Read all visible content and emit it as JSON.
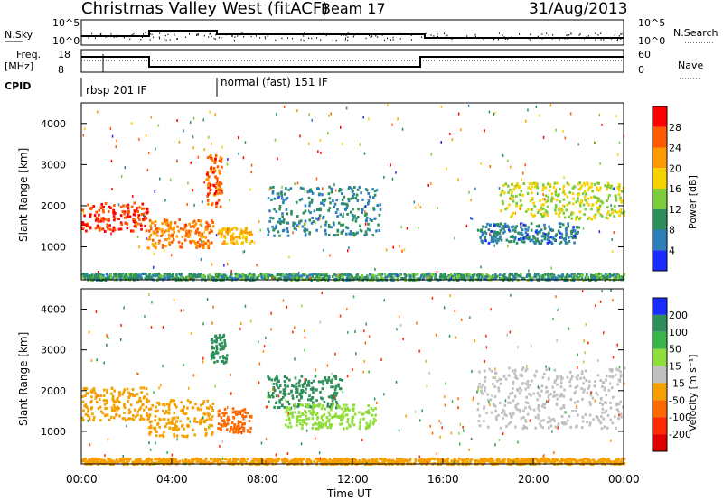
{
  "header": {
    "title": "Christmas Valley West (fitACF)",
    "beam": "Beam 17",
    "date": "31/Aug/2013"
  },
  "panels": {
    "nsky_label": "N.Sky",
    "nsky_ticks": [
      "10^5",
      "10^0"
    ],
    "nsearch_label": "N.Search",
    "nsearch_ticks": [
      "10^5",
      "10^0"
    ],
    "freq_label": "Freq.",
    "freq_unit": "[MHz]",
    "freq_ticks": [
      "18",
      "8"
    ],
    "nave_label": "Nave",
    "nave_ticks": [
      "60",
      "0"
    ],
    "cpid_label": "CPID",
    "cpid_segments": [
      "rbsp 201 IF",
      "normal (fast) 151 IF"
    ]
  },
  "chart_data": [
    {
      "type": "heatmap",
      "name": "power",
      "ylabel": "Slant Range [km]",
      "xlabel": "",
      "colorbar_label": "Power [dB]",
      "colorbar_ticks": [
        "28",
        "24",
        "20",
        "16",
        "12",
        "8",
        "4"
      ],
      "colorbar_colors": [
        "#ff0000",
        "#ff5a00",
        "#ff9b00",
        "#f5d200",
        "#7acc3a",
        "#2f8f5a",
        "#2c7fb8",
        "#1a2cff"
      ],
      "yticks": [
        "4000",
        "3000",
        "2000",
        "1000"
      ],
      "ylim": [
        200,
        4500
      ],
      "regions": [
        {
          "t0": 0.0,
          "t1": 2.9,
          "r0": 1400,
          "r1": 2100,
          "level": 26
        },
        {
          "t0": 2.9,
          "t1": 5.8,
          "r0": 1000,
          "r1": 1700,
          "level": 22
        },
        {
          "t0": 5.5,
          "t1": 6.2,
          "r0": 2000,
          "r1": 3300,
          "level": 24
        },
        {
          "t0": 6.0,
          "t1": 7.5,
          "r0": 1100,
          "r1": 1500,
          "level": 18
        },
        {
          "t0": 8.2,
          "t1": 13.2,
          "r0": 1300,
          "r1": 2500,
          "level": 6
        },
        {
          "t0": 18.5,
          "t1": 24.0,
          "r0": 1700,
          "r1": 2600,
          "level": 14
        },
        {
          "t0": 17.5,
          "t1": 22.0,
          "r0": 1100,
          "r1": 1600,
          "level": 5
        },
        {
          "t0": 0.0,
          "t1": 24.0,
          "r0": 220,
          "r1": 380,
          "level": 8
        }
      ]
    },
    {
      "type": "heatmap",
      "name": "velocity",
      "ylabel": "Slant Range [km]",
      "xlabel": "Time UT",
      "colorbar_label": "Velocity [m s⁻¹]",
      "colorbar_ticks": [
        "200",
        "100",
        "50",
        "15",
        "-15",
        "-50",
        "-100",
        "-200"
      ],
      "colorbar_colors": [
        "#1a2cff",
        "#2f8f5a",
        "#37b44a",
        "#8fdd3a",
        "#c0c0c0",
        "#f5a000",
        "#ff6a00",
        "#ff2a00",
        "#e00000"
      ],
      "yticks": [
        "4000",
        "3000",
        "2000",
        "1000"
      ],
      "xticks": [
        "00:00",
        "04:00",
        "08:00",
        "12:00",
        "16:00",
        "20:00",
        "00:00"
      ],
      "ylim": [
        200,
        4500
      ],
      "regions": [
        {
          "t0": 0.0,
          "t1": 2.9,
          "r0": 1300,
          "r1": 2100,
          "level": -20
        },
        {
          "t0": 2.9,
          "t1": 5.8,
          "r0": 900,
          "r1": 1800,
          "level": -30
        },
        {
          "t0": 5.7,
          "t1": 6.4,
          "r0": 2700,
          "r1": 3400,
          "level": 180
        },
        {
          "t0": 6.0,
          "t1": 7.5,
          "r0": 1000,
          "r1": 1600,
          "level": -80
        },
        {
          "t0": 8.2,
          "t1": 11.5,
          "r0": 1600,
          "r1": 2400,
          "level": 180
        },
        {
          "t0": 9.0,
          "t1": 13.0,
          "r0": 1100,
          "r1": 1700,
          "level": 40
        },
        {
          "t0": 17.5,
          "t1": 24.0,
          "r0": 1100,
          "r1": 2600,
          "level": 0
        },
        {
          "t0": 0.0,
          "t1": 24.0,
          "r0": 220,
          "r1": 360,
          "level": -40
        }
      ]
    }
  ]
}
